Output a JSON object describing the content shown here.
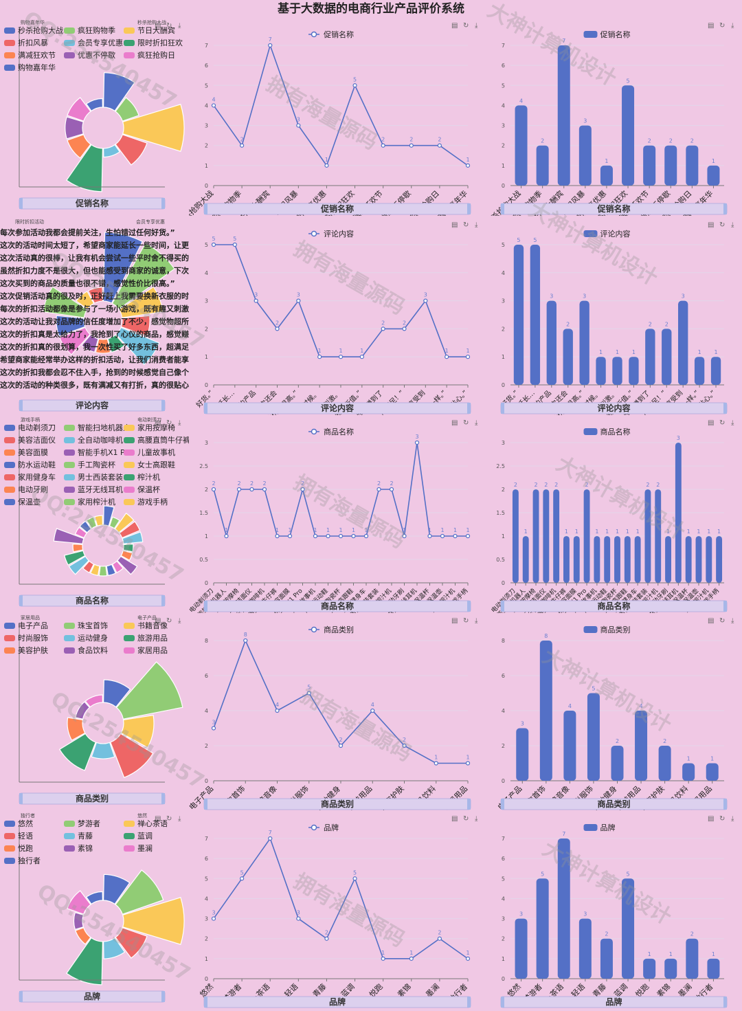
{
  "page": {
    "title": "基于大数据的电商行业产品评价系统",
    "toolbar_icons": [
      "file-icon",
      "refresh-icon",
      "download-icon"
    ]
  },
  "colors": {
    "bg": "#f0c8e4",
    "primary": "#5470c6",
    "palette": [
      "#5470c6",
      "#91cc75",
      "#fac858",
      "#ee6666",
      "#73c0de",
      "#3ba272",
      "#fc8452",
      "#9a60b4",
      "#ea7ccc"
    ]
  },
  "watermarks": [
    "QQ:254540457",
    "拥有海量源码",
    "大神计算机设计"
  ],
  "rows": [
    {
      "key": "promo",
      "panel_label": "促销名称",
      "legend_title": "促销名称",
      "rose_legend": [
        "秒杀抢购大战",
        "疯狂购物季",
        "节日大酬宾",
        "折扣风暴",
        "会员专享优惠",
        "限时折扣狂欢",
        "满减狂欢节",
        "优惠不停歇",
        "疯狂抢购日",
        "购物嘉年华"
      ],
      "rose_labels": [
        "购物嘉年华",
        "秒杀抢购大战"
      ],
      "rose_radii": [
        4,
        2,
        7,
        3,
        1,
        5,
        2,
        2,
        2,
        1
      ]
    },
    {
      "key": "comment",
      "panel_label": "评论内容",
      "legend_title": "评论内容",
      "text_lines": [
        "每次参加活动我都会提前关注，生怕错过任何好货。”",
        "这次的活动时间太短了，希望商家能延长一些时间，让更多人",
        "这次活动真的很棒，让我有机会尝试一些平时舍不得买的产品",
        "虽然折扣力度不是很大，但也能感受到商家的诚意，下次还会",
        "这次买到的商品的质量也很不错，感觉性价比很高。”",
        "这次促销活动真的很及时，正好赶上我需要换新衣服的时候。",
        "每次的折扣活动都像是参与了一场小游戏，既有趣又刺激。",
        "这次的活动让我对品牌的信任度增加了不少，感觉物超所值。”",
        "这次的折扣真是太给力了，我抢到了心仪的商品，感觉赚到了",
        "这次的折扣真的很划算，我一次性买了好多东西，超满足！”",
        "希望商家能经常举办这样的折扣活动，让我们消费者能享受到",
        "这次的折扣我都会忍不住入手，抢到的时候感觉自己像个小富翁一样。”",
        "这次的活动的种类很多，既有满减又有打折，真的很贴心。”"
      ],
      "rose_labels": [
        "限时折扣活动",
        "会员专享优惠"
      ],
      "rose_radii": [
        5,
        5,
        3,
        2,
        3,
        1,
        1,
        1,
        2,
        2,
        3,
        1,
        1
      ]
    },
    {
      "key": "product",
      "panel_label": "商品名称",
      "legend_title": "商品名称",
      "rose_legend": [
        "电动剃须刀",
        "智能扫地机器人",
        "家用按摩椅",
        "美容洁面仪",
        "全自动咖啡机",
        "高腰直筒牛仔裤",
        "美容面膜",
        "智能手机X1 Pro",
        "儿童故事机",
        "防水运动鞋",
        "手工陶瓷杯",
        "女士高跟鞋",
        "家用健身车",
        "男士西装套装",
        "榨汁机",
        "电动牙刷",
        "蓝牙无线耳机",
        "保温杯",
        "保温壶",
        "家用榨汁机",
        "游戏手柄"
      ],
      "rose_labels": [
        "游戏手柄",
        "电动剃须刀"
      ],
      "rose_radii": [
        2,
        1,
        2,
        2,
        2,
        1,
        1,
        2,
        1,
        1,
        1,
        1,
        1,
        2,
        2,
        1,
        3,
        1,
        1,
        1,
        1
      ]
    },
    {
      "key": "category",
      "panel_label": "商品类别",
      "legend_title": "商品类别",
      "rose_legend": [
        "电子产品",
        "珠宝首饰",
        "书籍音像",
        "时尚服饰",
        "运动健身",
        "旅游用品",
        "美容护肤",
        "食品饮料",
        "家居用品"
      ],
      "rose_labels": [
        "家居用品",
        "电子产品"
      ],
      "rose_radii": [
        3,
        8,
        4,
        5,
        2,
        4,
        2,
        1,
        1
      ]
    },
    {
      "key": "brand",
      "panel_label": "品牌",
      "legend_title": "品牌",
      "rose_legend": [
        "悠然",
        "梦游者",
        "禅心茶语",
        "轻语",
        "青藤",
        "蓝调",
        "悦跑",
        "素锦",
        "墨澜",
        "独行者"
      ],
      "rose_labels": [
        "独行者",
        "悠然"
      ],
      "rose_radii": [
        3,
        5,
        7,
        3,
        2,
        5,
        1,
        1,
        2,
        1
      ]
    }
  ],
  "chart_data": [
    {
      "type": "line",
      "series": [
        {
          "name": "促销名称",
          "values": [
            4,
            2,
            7,
            3,
            1,
            5,
            2,
            2,
            2,
            1
          ]
        }
      ],
      "categories": [
        "秒杀抢购大战",
        "疯狂购物季",
        "节日大酬宾",
        "折扣风暴",
        "会员专享优惠",
        "限时折扣狂欢",
        "满减狂欢节",
        "优惠不停歇",
        "疯狂抢购日",
        "购物嘉年华"
      ],
      "xlabel": "促销名称",
      "ylim": [
        0,
        7
      ],
      "yticks": [
        0,
        1,
        2,
        3,
        4,
        5,
        6,
        7
      ]
    },
    {
      "type": "bar",
      "series": [
        {
          "name": "促销名称",
          "values": [
            4,
            2,
            7,
            3,
            1,
            5,
            2,
            2,
            2,
            1
          ]
        }
      ],
      "categories": [
        "秒杀抢购大战",
        "疯狂购物季",
        "节日大酬宾",
        "折扣风暴",
        "会员专享优惠",
        "限时折扣狂欢",
        "满减狂欢节",
        "优惠不停歇",
        "疯狂抢购日",
        "购物嘉年华"
      ],
      "xlabel": "促销名称",
      "ylim": [
        0,
        7
      ],
      "yticks": [
        0,
        1,
        2,
        3,
        4,
        5,
        6,
        7
      ]
    },
    {
      "type": "line",
      "series": [
        {
          "name": "评论内容",
          "values": [
            5,
            5,
            3,
            2,
            3,
            1,
            1,
            1,
            2,
            2,
            3,
            1,
            1
          ]
        }
      ],
      "categories": [
        "好货。”",
        "能延长…",
        "的产品",
        "下次还会",
        "性价比很高。”",
        "的时候。",
        "又刺激。",
        "物超所值。”",
        "感觉赚到了",
        "超满足！”",
        "能享受到",
        "一样。”",
        "很贴心。”"
      ],
      "xlabel": "评论内容",
      "ylim": [
        0,
        5
      ],
      "yticks": [
        0,
        1,
        2,
        3,
        4,
        5
      ]
    },
    {
      "type": "bar",
      "series": [
        {
          "name": "评论内容",
          "values": [
            5,
            5,
            3,
            2,
            3,
            1,
            1,
            1,
            2,
            2,
            3,
            1,
            1
          ]
        }
      ],
      "categories": [
        "好货。”",
        "能延长…",
        "的产品",
        "下次还会",
        "性价比很高。”",
        "的时候。",
        "又刺激。",
        "物超所值。”",
        "感觉赚到了",
        "超满足！”",
        "能享受到",
        "一样。”",
        "很贴心。”"
      ],
      "xlabel": "评论内容",
      "ylim": [
        0,
        5
      ],
      "yticks": [
        0,
        1,
        2,
        3,
        4,
        5
      ]
    },
    {
      "type": "line",
      "series": [
        {
          "name": "商品名称",
          "values": [
            2,
            1,
            2,
            2,
            2,
            1,
            1,
            2,
            1,
            1,
            1,
            1,
            1,
            2,
            2,
            1,
            3,
            1,
            1,
            1,
            1
          ]
        }
      ],
      "categories": [
        "电动剃须刀",
        "智能扫地机器人",
        "家用按摩椅",
        "美容洁面仪",
        "全自动咖啡机",
        "高腰直筒牛仔裤",
        "美容面膜",
        "智能手机X1 Pro",
        "儿童故事机",
        "防水运动鞋",
        "手工陶瓷杯",
        "女士高跟鞋",
        "家用健身车",
        "男士西装套装",
        "榨汁机",
        "电动牙刷",
        "蓝牙无线耳机",
        "保温杯",
        "保温壶",
        "家用榨汁机",
        "游戏手柄"
      ],
      "xlabel": "商品名称",
      "ylim": [
        0,
        3
      ],
      "yticks": [
        0,
        0.5,
        1,
        1.5,
        2,
        2.5,
        3
      ]
    },
    {
      "type": "bar",
      "series": [
        {
          "name": "商品名称",
          "values": [
            2,
            1,
            2,
            2,
            2,
            1,
            1,
            2,
            1,
            1,
            1,
            1,
            1,
            2,
            2,
            1,
            3,
            1,
            1,
            1,
            1
          ]
        }
      ],
      "categories": [
        "电动剃须刀",
        "智能扫地机器人",
        "家用按摩椅",
        "美容洁面仪",
        "全自动咖啡机",
        "高腰直筒牛仔裤",
        "美容面膜",
        "智能手机X1 Pro",
        "儿童故事机",
        "防水运动鞋",
        "手工陶瓷杯",
        "女士高跟鞋",
        "家用健身车",
        "男士西装套装",
        "榨汁机",
        "电动牙刷",
        "蓝牙无线耳机",
        "保温杯",
        "保温壶",
        "家用榨汁机",
        "游戏手柄"
      ],
      "xlabel": "商品名称",
      "ylim": [
        0,
        3
      ],
      "yticks": [
        0,
        0.5,
        1,
        1.5,
        2,
        2.5,
        3
      ]
    },
    {
      "type": "line",
      "series": [
        {
          "name": "商品类别",
          "values": [
            3,
            8,
            4,
            5,
            2,
            4,
            2,
            1,
            1
          ]
        }
      ],
      "categories": [
        "电子产品",
        "珠宝首饰",
        "书籍音像",
        "时尚服饰",
        "运动健身",
        "旅游用品",
        "美容护肤",
        "食品饮料",
        "家居用品"
      ],
      "xlabel": "商品类别",
      "ylim": [
        0,
        8
      ],
      "yticks": [
        0,
        2,
        4,
        6,
        8
      ]
    },
    {
      "type": "bar",
      "series": [
        {
          "name": "商品类别",
          "values": [
            3,
            8,
            4,
            5,
            2,
            4,
            2,
            1,
            1
          ]
        }
      ],
      "categories": [
        "电子产品",
        "珠宝首饰",
        "书籍音像",
        "时尚服饰",
        "运动健身",
        "旅游用品",
        "美容护肤",
        "食品饮料",
        "家居用品"
      ],
      "xlabel": "商品类别",
      "ylim": [
        0,
        8
      ],
      "yticks": [
        0,
        2,
        4,
        6,
        8
      ]
    },
    {
      "type": "line",
      "series": [
        {
          "name": "品牌",
          "values": [
            3,
            5,
            7,
            3,
            2,
            5,
            1,
            1,
            2,
            1
          ]
        }
      ],
      "categories": [
        "悠然",
        "梦游者",
        "禅心茶语",
        "轻语",
        "青藤",
        "蓝调",
        "悦跑",
        "素锦",
        "墨澜",
        "独行者"
      ],
      "xlabel": "品牌",
      "ylim": [
        0,
        7
      ],
      "yticks": [
        0,
        1,
        2,
        3,
        4,
        5,
        6,
        7
      ]
    },
    {
      "type": "bar",
      "series": [
        {
          "name": "品牌",
          "values": [
            3,
            5,
            7,
            3,
            2,
            5,
            1,
            1,
            2,
            1
          ]
        }
      ],
      "categories": [
        "悠然",
        "梦游者",
        "禅心茶语",
        "轻语",
        "青藤",
        "蓝调",
        "悦跑",
        "素锦",
        "墨澜",
        "独行者"
      ],
      "xlabel": "品牌",
      "ylim": [
        0,
        7
      ],
      "yticks": [
        0,
        1,
        2,
        3,
        4,
        5,
        6,
        7
      ]
    }
  ]
}
